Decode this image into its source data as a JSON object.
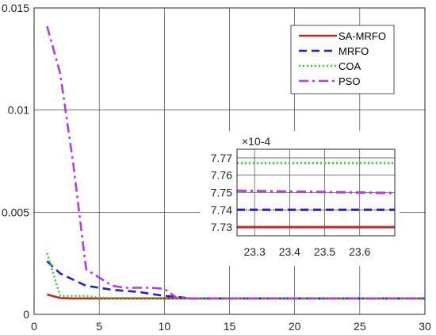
{
  "chart_data": [
    {
      "type": "line",
      "title": "",
      "xlabel": "",
      "ylabel": "",
      "xlim": [
        0,
        30
      ],
      "ylim": [
        0,
        0.015
      ],
      "xticks": [
        "0",
        "5",
        "10",
        "15",
        "20",
        "25",
        "30"
      ],
      "yticks": [
        "0",
        "0.005",
        "0.01",
        "0.015"
      ],
      "grid": true,
      "legend_position": "top-right",
      "series": [
        {
          "name": "SA-MRFO",
          "color": "#c0282b",
          "style": "solid",
          "x": [
            1,
            2,
            3,
            4,
            5,
            6,
            7,
            8,
            9,
            10,
            11,
            12,
            13,
            14,
            15,
            16,
            17,
            18,
            19,
            20,
            21,
            22,
            23,
            24,
            25,
            26,
            27,
            28,
            29,
            30
          ],
          "y": [
            0.00097,
            0.0008,
            0.00078,
            0.00078,
            0.00078,
            0.00078,
            0.00078,
            0.00078,
            0.00078,
            0.00078,
            0.00078,
            0.00078,
            0.00078,
            0.00078,
            0.00078,
            0.00078,
            0.00078,
            0.00078,
            0.00078,
            0.00078,
            0.00078,
            0.00078,
            0.00078,
            0.00078,
            0.00078,
            0.00078,
            0.00078,
            0.00078,
            0.00078,
            0.00078
          ]
        },
        {
          "name": "MRFO",
          "color": "#1f1fd6",
          "style": "dashed",
          "x": [
            1,
            2,
            3,
            4,
            5,
            6,
            7,
            8,
            9,
            10,
            11,
            12,
            13,
            14,
            15,
            16,
            17,
            18,
            19,
            20,
            21,
            22,
            23,
            24,
            25,
            26,
            27,
            28,
            29,
            30
          ],
          "y": [
            0.0026,
            0.002,
            0.0017,
            0.0014,
            0.0013,
            0.0012,
            0.00115,
            0.0011,
            0.001,
            0.0009,
            0.00085,
            0.00078,
            0.00078,
            0.00078,
            0.00078,
            0.00078,
            0.00078,
            0.00078,
            0.00078,
            0.00078,
            0.00078,
            0.00078,
            0.00078,
            0.00078,
            0.00078,
            0.00078,
            0.00078,
            0.00078,
            0.00078,
            0.00078
          ]
        },
        {
          "name": "COA",
          "color": "#2fd82f",
          "style": "dotted",
          "x": [
            1,
            2,
            3,
            4,
            5,
            6,
            7,
            8,
            9,
            10,
            11,
            12,
            13,
            14,
            15,
            16,
            17,
            18,
            19,
            20,
            21,
            22,
            23,
            24,
            25,
            26,
            27,
            28,
            29,
            30
          ],
          "y": [
            0.003,
            0.0009,
            0.0009,
            0.0009,
            0.00082,
            0.0008,
            0.0008,
            0.0008,
            0.0008,
            0.0008,
            0.0008,
            0.00078,
            0.00078,
            0.00078,
            0.00078,
            0.00078,
            0.00078,
            0.00078,
            0.00078,
            0.00078,
            0.00078,
            0.00078,
            0.00078,
            0.00078,
            0.00078,
            0.00078,
            0.00078,
            0.00078,
            0.00078,
            0.00078
          ]
        },
        {
          "name": "PSO",
          "color": "#b43ce0",
          "style": "dashdot",
          "x": [
            1,
            2,
            3,
            4,
            5,
            6,
            7,
            8,
            9,
            10,
            11,
            12,
            13,
            14,
            15,
            16,
            17,
            18,
            19,
            20,
            21,
            22,
            23,
            24,
            25,
            26,
            27,
            28,
            29,
            30
          ],
          "y": [
            0.0141,
            0.0118,
            0.0074,
            0.0022,
            0.0018,
            0.0014,
            0.0013,
            0.0013,
            0.0013,
            0.00125,
            0.00078,
            0.00078,
            0.00078,
            0.00078,
            0.00078,
            0.00078,
            0.00078,
            0.00078,
            0.00078,
            0.00078,
            0.00078,
            0.00078,
            0.00078,
            0.00078,
            0.00078,
            0.00078,
            0.00078,
            0.00078,
            0.00078,
            0.00078
          ]
        }
      ]
    },
    {
      "type": "line",
      "title": "",
      "exponent_label": "×10^-4",
      "xlim": [
        23.25,
        23.7
      ],
      "ylim": [
        7.725,
        7.775
      ],
      "xticks": [
        "23.3",
        "23.4",
        "23.5",
        "23.6"
      ],
      "yticks": [
        "7.73",
        "7.74",
        "7.75",
        "7.76",
        "7.77"
      ],
      "grid": true,
      "series": [
        {
          "name": "SA-MRFO",
          "color": "#c0282b",
          "style": "solid",
          "x": [
            23.25,
            23.7
          ],
          "y": [
            7.73,
            7.73
          ]
        },
        {
          "name": "MRFO",
          "color": "#1f1fd6",
          "style": "dashed",
          "x": [
            23.25,
            23.7
          ],
          "y": [
            7.74,
            7.74
          ]
        },
        {
          "name": "COA",
          "color": "#2fd82f",
          "style": "dotted",
          "x": [
            23.25,
            23.7
          ],
          "y": [
            7.767,
            7.767
          ]
        },
        {
          "name": "PSO",
          "color": "#b43ce0",
          "style": "dashdot",
          "x": [
            23.25,
            23.7
          ],
          "y": [
            7.751,
            7.7497
          ]
        }
      ]
    }
  ]
}
